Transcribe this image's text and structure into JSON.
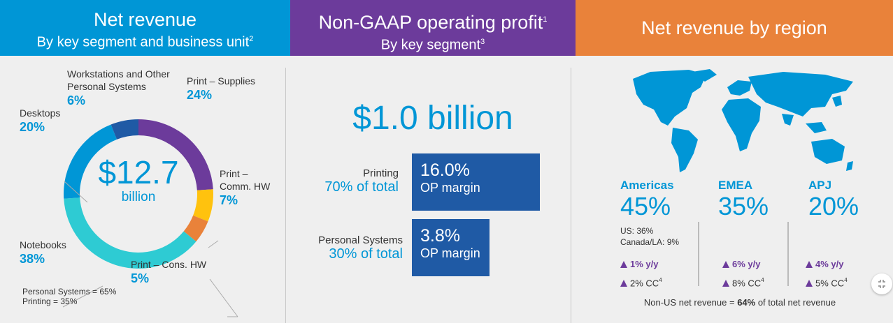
{
  "headers": {
    "net_revenue": {
      "title": "Net revenue",
      "subtitle": "By key segment and business unit",
      "sup": "2"
    },
    "op_profit": {
      "title": "Non-GAAP operating profit",
      "title_sup": "1",
      "subtitle": "By key segment",
      "sup": "3"
    },
    "region": {
      "title": "Net revenue by region"
    }
  },
  "chart_data": [
    {
      "type": "pie",
      "title": "Net revenue by key segment and business unit",
      "center_value": "$12.7",
      "center_unit": "billion",
      "segments": [
        {
          "name": "Print – Supplies",
          "value": 24,
          "label": "24%",
          "color": "#6c3b9b"
        },
        {
          "name": "Print – Comm. HW",
          "value": 7,
          "label": "7%",
          "color": "#ffc20e"
        },
        {
          "name": "Print – Cons. HW",
          "value": 5,
          "label": "5%",
          "color": "#e9823a"
        },
        {
          "name": "Notebooks",
          "value": 38,
          "label": "38%",
          "color": "#2ecbd3"
        },
        {
          "name": "Desktops",
          "value": 20,
          "label": "20%",
          "color": "#0096d6"
        },
        {
          "name": "Workstations and Other Personal Systems",
          "value": 6,
          "label": "6%",
          "color": "#1f5aa5"
        }
      ],
      "segment_labels": {
        "supplies": "Print – Supplies",
        "comm_hw_1": "Print –",
        "comm_hw_2": "Comm. HW",
        "cons_hw": "Print – Cons. HW",
        "notebooks": "Notebooks",
        "desktops": "Desktops",
        "workstations_1": "Workstations and Other",
        "workstations_2": "Personal Systems"
      },
      "footnote_1": "Personal Systems = 65%",
      "footnote_2": "Printing = 35%"
    },
    {
      "type": "table",
      "title": "Non-GAAP operating profit by key segment",
      "total": "$1.0 billion",
      "rows": [
        {
          "segment": "Printing",
          "share": "70% of total",
          "margin": "16.0%",
          "margin_label": "OP margin"
        },
        {
          "segment": "Personal Systems",
          "share": "30% of total",
          "margin": "3.8%",
          "margin_label": "OP margin"
        }
      ]
    },
    {
      "type": "table",
      "title": "Net revenue by region",
      "regions": [
        {
          "name": "Americas",
          "value": "45%",
          "yy": "1% y/y",
          "cc": "2% CC",
          "cc_sup": "4",
          "detail_1": "US: 36%",
          "detail_2": "Canada/LA: 9%"
        },
        {
          "name": "EMEA",
          "value": "35%",
          "yy": "6% y/y",
          "cc": "8% CC",
          "cc_sup": "4"
        },
        {
          "name": "APJ",
          "value": "20%",
          "yy": "4% y/y",
          "cc": "5% CC",
          "cc_sup": "4"
        }
      ],
      "footer_pre": "Non-US net revenue = ",
      "footer_bold": "64%",
      "footer_post": " of total net revenue"
    }
  ],
  "colors": {
    "blue": "#0096d6",
    "purple": "#6c3b9b",
    "orange": "#e9823a",
    "dark_blue": "#1f5aa5"
  },
  "icons": {
    "collapse": "collapse-icon",
    "map": "world-map-icon"
  }
}
